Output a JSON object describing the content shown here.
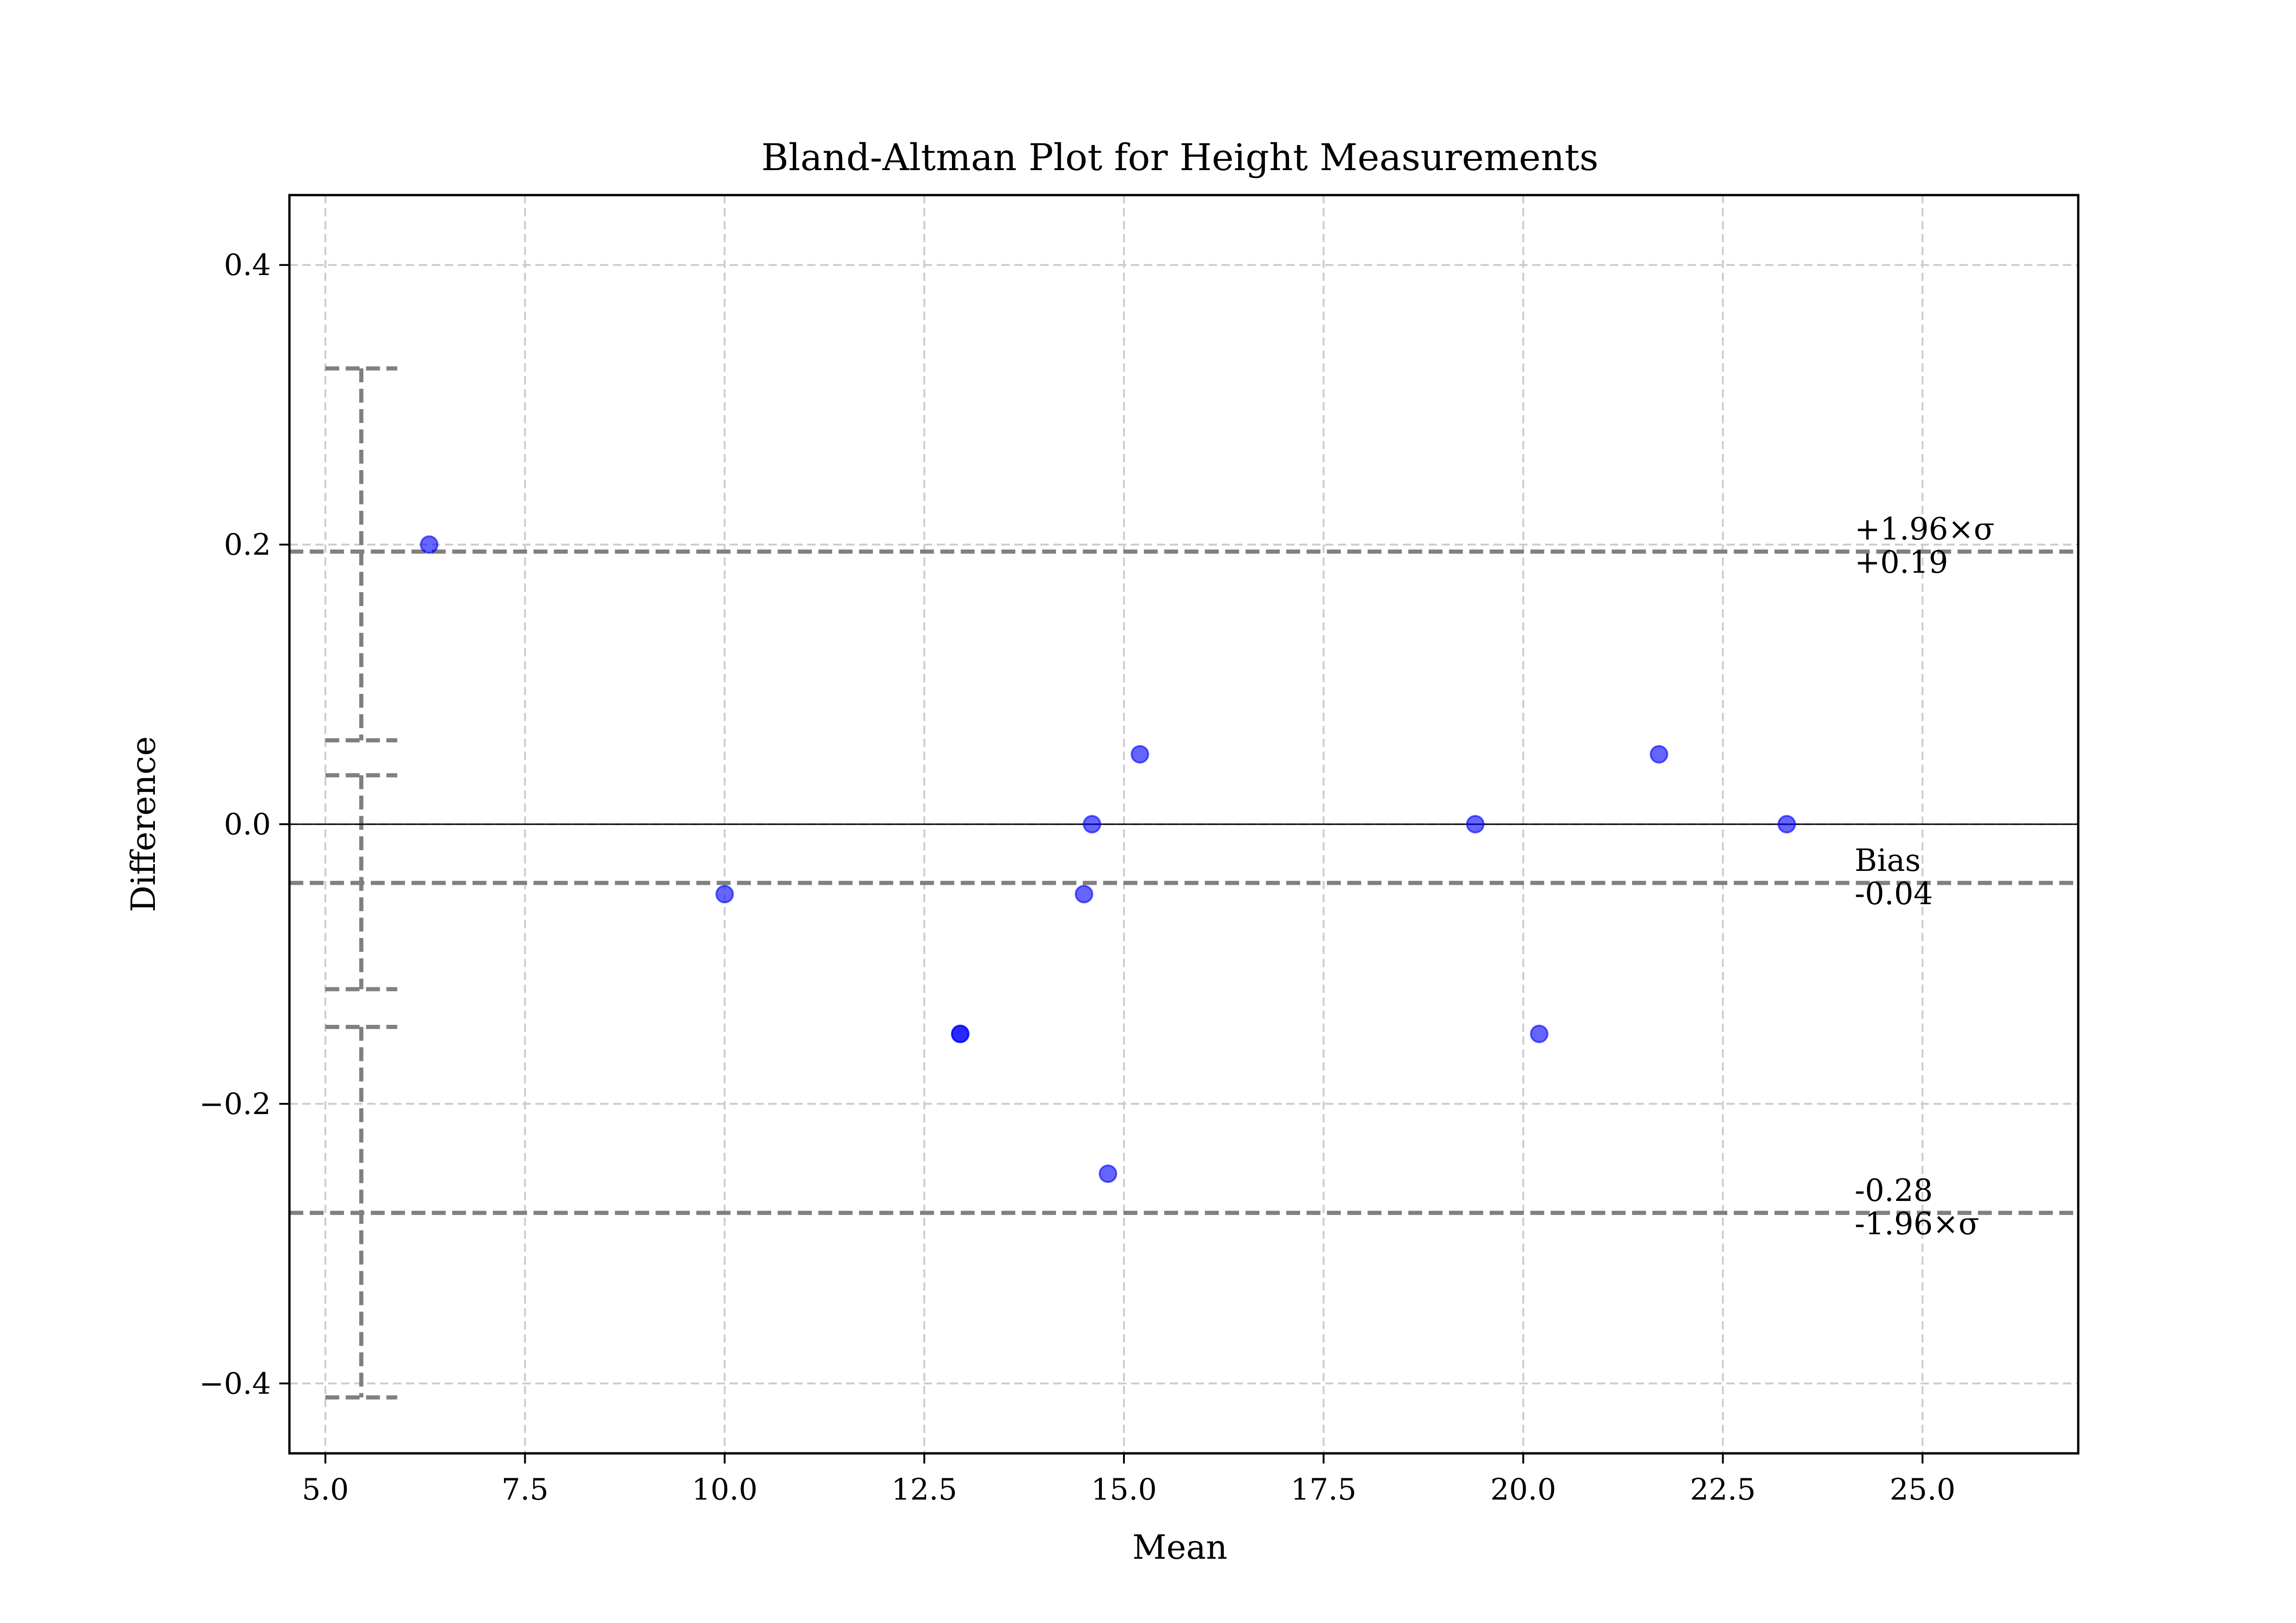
{
  "chart_data": {
    "type": "scatter",
    "title": "Bland-Altman Plot for Height Measurements",
    "xlabel": "Mean",
    "ylabel": "Difference",
    "xlim": [
      4.55,
      26.95
    ],
    "ylim": [
      -0.45,
      0.45
    ],
    "grid": true,
    "x_ticks": [
      5.0,
      7.5,
      10.0,
      12.5,
      15.0,
      17.5,
      20.0,
      22.5,
      25.0
    ],
    "x_tick_labels": [
      "5.0",
      "7.5",
      "10.0",
      "12.5",
      "15.0",
      "17.5",
      "20.0",
      "22.5",
      "25.0"
    ],
    "y_ticks": [
      -0.4,
      -0.2,
      0.0,
      0.2,
      0.4
    ],
    "y_tick_labels": [
      "−0.4",
      "−0.2",
      "0.0",
      "0.2",
      "0.4"
    ],
    "points": [
      {
        "x": 6.3,
        "y": 0.2
      },
      {
        "x": 10.0,
        "y": -0.05
      },
      {
        "x": 12.95,
        "y": -0.15
      },
      {
        "x": 12.95,
        "y": -0.15
      },
      {
        "x": 14.5,
        "y": -0.05
      },
      {
        "x": 14.6,
        "y": 0.0
      },
      {
        "x": 14.8,
        "y": -0.25
      },
      {
        "x": 15.2,
        "y": 0.05
      },
      {
        "x": 19.4,
        "y": 0.0
      },
      {
        "x": 20.2,
        "y": -0.15
      },
      {
        "x": 21.7,
        "y": 0.05
      },
      {
        "x": 23.3,
        "y": 0.0
      }
    ],
    "point_color": "#0000ff",
    "zero_line": 0.0,
    "reference_lines": [
      {
        "y": 0.195,
        "label_top": "+1.96×σ",
        "label_bottom": "+0.19"
      },
      {
        "y": -0.042,
        "label_top": "Bias",
        "label_bottom": "-0.04"
      },
      {
        "y": -0.278,
        "label_top": "-0.28",
        "label_bottom": "-1.96×σ"
      }
    ],
    "reference_line_color": "#808080",
    "confidence_intervals": [
      {
        "x": 5.45,
        "low": 0.06,
        "high": 0.326
      },
      {
        "x": 5.45,
        "low": -0.118,
        "high": 0.035
      },
      {
        "x": 5.45,
        "low": -0.41,
        "high": -0.145
      }
    ]
  }
}
